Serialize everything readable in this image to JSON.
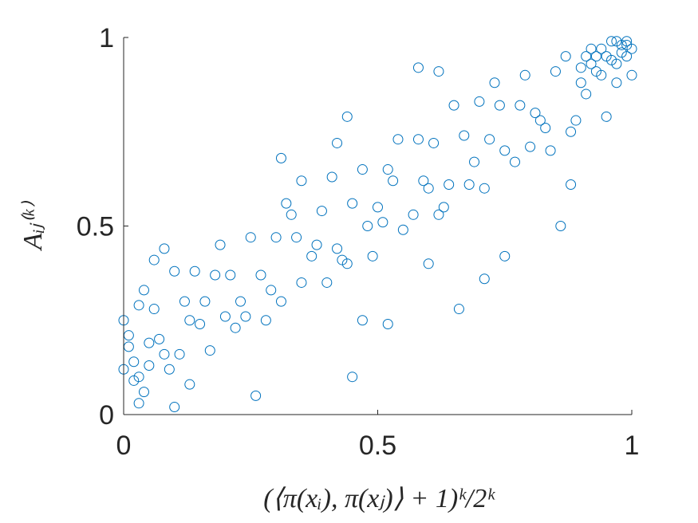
{
  "chart_data": {
    "type": "scatter",
    "xlabel": "(⟨π(xᵢ), π(xⱼ)⟩ + 1)ᵏ/2ᵏ",
    "ylabel": "Aᵢⱼ⁽ᵏ⁾",
    "color": "#0072bd",
    "xlim": [
      0,
      1
    ],
    "ylim": [
      0,
      1
    ],
    "xticks": [
      0,
      0.5,
      1
    ],
    "yticks": [
      0,
      0.5,
      1
    ],
    "grid": false,
    "x": [
      0.01,
      0.02,
      0.03,
      0.0,
      0.05,
      0.04,
      0.06,
      0.08,
      0.1,
      0.09,
      0.12,
      0.11,
      0.14,
      0.15,
      0.13,
      0.17,
      0.18,
      0.2,
      0.19,
      0.22,
      0.21,
      0.24,
      0.25,
      0.23,
      0.27,
      0.28,
      0.3,
      0.29,
      0.32,
      0.31,
      0.34,
      0.35,
      0.33,
      0.37,
      0.38,
      0.4,
      0.39,
      0.42,
      0.41,
      0.44,
      0.45,
      0.43,
      0.47,
      0.48,
      0.5,
      0.49,
      0.52,
      0.51,
      0.54,
      0.55,
      0.53,
      0.57,
      0.58,
      0.6,
      0.59,
      0.62,
      0.61,
      0.64,
      0.65,
      0.63,
      0.67,
      0.68,
      0.7,
      0.69,
      0.72,
      0.71,
      0.74,
      0.75,
      0.73,
      0.77,
      0.78,
      0.8,
      0.79,
      0.82,
      0.81,
      0.84,
      0.85,
      0.83,
      0.87,
      0.88,
      0.9,
      0.89,
      0.92,
      0.91,
      0.94,
      0.95,
      0.93,
      0.97,
      0.98,
      1.0,
      0.99,
      0.96,
      0.02,
      0.01,
      0.03,
      0.0,
      0.04,
      0.05,
      0.07,
      0.03,
      0.1,
      0.06,
      0.08,
      0.13,
      0.16,
      0.26,
      0.35,
      0.31,
      0.42,
      0.44,
      0.45,
      0.52,
      0.58,
      0.62,
      0.66,
      0.71,
      0.75,
      0.86,
      0.88,
      0.9,
      0.92,
      0.94,
      0.95,
      0.96,
      0.97,
      0.98,
      0.99,
      1.0,
      0.93,
      0.91,
      0.97,
      0.99,
      0.47,
      0.6
    ],
    "y": [
      0.21,
      0.09,
      0.29,
      0.12,
      0.19,
      0.06,
      0.28,
      0.16,
      0.38,
      0.12,
      0.3,
      0.16,
      0.38,
      0.24,
      0.25,
      0.17,
      0.37,
      0.26,
      0.45,
      0.23,
      0.37,
      0.26,
      0.47,
      0.3,
      0.37,
      0.25,
      0.47,
      0.33,
      0.56,
      0.3,
      0.47,
      0.35,
      0.53,
      0.42,
      0.45,
      0.35,
      0.54,
      0.44,
      0.63,
      0.4,
      0.56,
      0.41,
      0.65,
      0.5,
      0.55,
      0.42,
      0.65,
      0.51,
      0.73,
      0.49,
      0.62,
      0.53,
      0.73,
      0.6,
      0.62,
      0.53,
      0.72,
      0.61,
      0.82,
      0.55,
      0.74,
      0.61,
      0.83,
      0.67,
      0.73,
      0.6,
      0.82,
      0.7,
      0.88,
      0.67,
      0.82,
      0.71,
      0.9,
      0.78,
      0.8,
      0.7,
      0.91,
      0.76,
      0.95,
      0.75,
      0.92,
      0.78,
      0.97,
      0.85,
      0.9,
      0.79,
      0.95,
      0.88,
      0.98,
      0.9,
      0.98,
      0.94,
      0.14,
      0.18,
      0.1,
      0.25,
      0.33,
      0.13,
      0.2,
      0.03,
      0.02,
      0.41,
      0.44,
      0.08,
      0.3,
      0.05,
      0.62,
      0.68,
      0.72,
      0.79,
      0.1,
      0.24,
      0.92,
      0.91,
      0.28,
      0.36,
      0.42,
      0.5,
      0.61,
      0.88,
      0.93,
      0.97,
      0.95,
      0.99,
      0.93,
      0.96,
      0.95,
      0.97,
      0.91,
      0.95,
      0.99,
      0.99,
      0.25,
      0.4
    ]
  }
}
